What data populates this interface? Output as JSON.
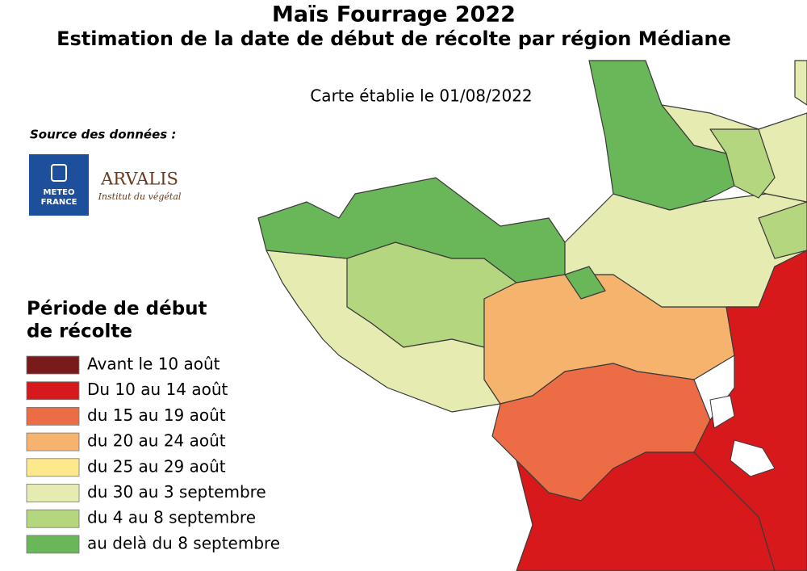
{
  "header": {
    "title": "Maïs Fourrage 2022",
    "subtitle": "Estimation de la date de début de récolte par région Médiane",
    "date": "Carte établie le 01/08/2022"
  },
  "source": {
    "label": "Source des données :",
    "meteo_lines": [
      "METEO",
      "FRANCE"
    ],
    "arvalis": "ARVALIS",
    "arvalis_tagline": "Institut du végétal"
  },
  "legend": {
    "title_lines": [
      "Période de début",
      "de récolte"
    ],
    "items": [
      {
        "label": "Avant le 10 août",
        "color": "#7a1b1b"
      },
      {
        "label": "Du 10 au 14 août",
        "color": "#d7191c"
      },
      {
        "label": "du 15 au 19 août",
        "color": "#ec6c45"
      },
      {
        "label": "du 20 au 24 août",
        "color": "#f6b36d"
      },
      {
        "label": "du 25 au 29 août",
        "color": "#fde98c"
      },
      {
        "label": "du 30 au 3 septembre",
        "color": "#e6ebb2"
      },
      {
        "label": "du 4 au 8 septembre",
        "color": "#b4d67f"
      },
      {
        "label": "au delà du 8 septembre",
        "color": "#6ab759"
      }
    ]
  }
}
